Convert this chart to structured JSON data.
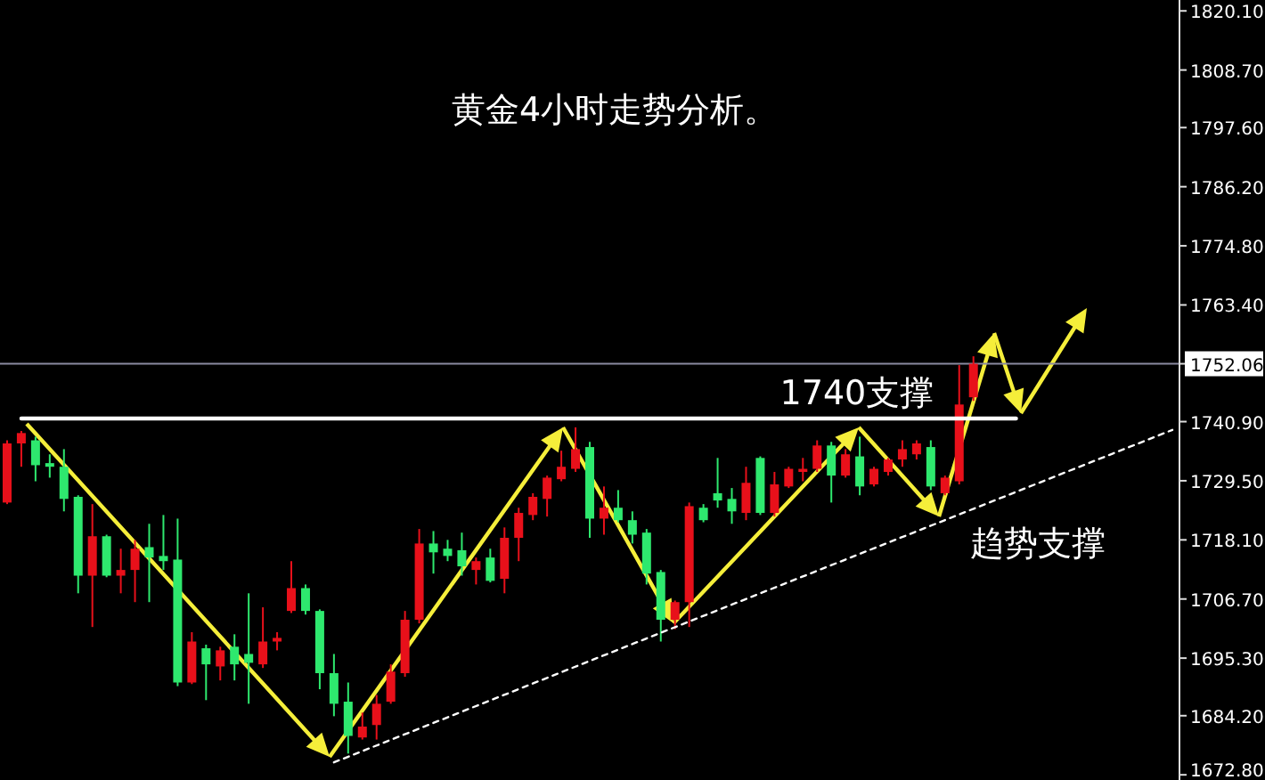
{
  "chart_data": {
    "type": "candlestick",
    "title": "黄金4小时走势分析。",
    "categories": [
      null,
      null,
      null,
      null,
      null,
      null,
      null,
      null,
      null,
      null,
      null,
      null,
      null,
      null,
      null,
      null,
      null,
      null,
      null,
      null,
      null,
      null,
      null,
      null,
      null,
      null,
      null,
      null,
      null,
      null,
      null,
      null,
      null,
      null,
      null,
      null,
      null,
      null,
      null,
      null,
      null,
      null,
      null,
      null,
      null,
      null,
      null,
      null,
      null,
      null,
      null,
      null,
      null,
      null,
      null,
      null,
      null,
      null,
      null,
      null,
      null,
      null,
      null,
      null,
      null,
      null,
      null,
      null,
      null,
      null,
      null,
      null,
      null,
      null,
      null,
      null,
      null,
      null,
      null,
      null,
      null,
      null,
      null
    ],
    "ohlc": [
      [
        1725.3,
        1737.3,
        1725.0,
        1736.7
      ],
      [
        1736.7,
        1739.1,
        1732.2,
        1738.7
      ],
      [
        1737.3,
        1738.0,
        1729.4,
        1732.5
      ],
      [
        1732.9,
        1734.6,
        1730.1,
        1732.2
      ],
      [
        1732.2,
        1735.6,
        1723.6,
        1726.0
      ],
      [
        1726.4,
        1726.7,
        1707.8,
        1711.2
      ],
      [
        1711.2,
        1725.0,
        1701.3,
        1718.8
      ],
      [
        1718.8,
        1719.1,
        1710.9,
        1711.2
      ],
      [
        1711.2,
        1716.4,
        1707.8,
        1712.3
      ],
      [
        1712.3,
        1718.1,
        1706.1,
        1716.4
      ],
      [
        1716.7,
        1721.2,
        1706.1,
        1714.7
      ],
      [
        1715.0,
        1722.9,
        1712.3,
        1714.0
      ],
      [
        1714.3,
        1722.2,
        1689.9,
        1690.6
      ],
      [
        1690.6,
        1700.3,
        1690.3,
        1698.5
      ],
      [
        1697.2,
        1697.9,
        1687.2,
        1694.1
      ],
      [
        1693.7,
        1697.5,
        1691.0,
        1696.8
      ],
      [
        1697.5,
        1699.9,
        1691.0,
        1694.1
      ],
      [
        1696.1,
        1707.8,
        1686.5,
        1694.4
      ],
      [
        1694.1,
        1705.1,
        1693.4,
        1698.5
      ],
      [
        1698.5,
        1700.3,
        1696.8,
        1699.2
      ],
      [
        1704.4,
        1714.0,
        1704.0,
        1708.8
      ],
      [
        1708.8,
        1709.5,
        1703.7,
        1704.4
      ],
      [
        1704.4,
        1704.7,
        1689.3,
        1692.4
      ],
      [
        1692.4,
        1696.1,
        1684.1,
        1686.5
      ],
      [
        1686.9,
        1690.6,
        1676.9,
        1680.3
      ],
      [
        1680.0,
        1684.8,
        1679.6,
        1682.1
      ],
      [
        1682.4,
        1688.2,
        1679.6,
        1686.5
      ],
      [
        1686.9,
        1694.1,
        1686.5,
        1692.7
      ],
      [
        1692.4,
        1704.4,
        1691.7,
        1702.7
      ],
      [
        1702.7,
        1720.2,
        1702.0,
        1717.4
      ],
      [
        1717.4,
        1719.8,
        1711.6,
        1715.7
      ],
      [
        1716.4,
        1718.1,
        1714.0,
        1715.0
      ],
      [
        1716.1,
        1719.5,
        1711.2,
        1713.0
      ],
      [
        1712.3,
        1714.7,
        1709.5,
        1714.0
      ],
      [
        1714.7,
        1716.4,
        1709.9,
        1710.2
      ],
      [
        1710.6,
        1720.5,
        1707.8,
        1718.5
      ],
      [
        1718.5,
        1724.3,
        1714.0,
        1723.3
      ],
      [
        1722.9,
        1727.1,
        1721.9,
        1726.4
      ],
      [
        1726.0,
        1730.5,
        1722.6,
        1730.1
      ],
      [
        1729.8,
        1735.3,
        1729.4,
        1732.2
      ],
      [
        1731.8,
        1739.8,
        1731.2,
        1735.6
      ],
      [
        1736.0,
        1737.0,
        1718.5,
        1722.2
      ],
      [
        1722.2,
        1728.4,
        1719.1,
        1724.3
      ],
      [
        1724.3,
        1727.7,
        1721.5,
        1721.9
      ],
      [
        1721.9,
        1723.6,
        1717.4,
        1719.1
      ],
      [
        1719.5,
        1720.2,
        1709.5,
        1711.6
      ],
      [
        1711.9,
        1712.3,
        1698.5,
        1702.7
      ],
      [
        1702.7,
        1706.4,
        1700.9,
        1706.1
      ],
      [
        1706.1,
        1725.3,
        1701.3,
        1724.6
      ],
      [
        1724.3,
        1725.0,
        1721.5,
        1721.9
      ],
      [
        1727.1,
        1733.9,
        1724.3,
        1725.7
      ],
      [
        1726.0,
        1728.1,
        1721.2,
        1723.6
      ],
      [
        1723.3,
        1732.2,
        1721.9,
        1729.1
      ],
      [
        1733.9,
        1734.2,
        1722.9,
        1723.3
      ],
      [
        1723.3,
        1731.2,
        1722.6,
        1728.8
      ],
      [
        1728.4,
        1732.2,
        1728.1,
        1731.8
      ],
      [
        1731.2,
        1733.9,
        1729.4,
        1731.8
      ],
      [
        1731.8,
        1737.3,
        1731.2,
        1736.3
      ],
      [
        1736.3,
        1737.0,
        1725.3,
        1730.5
      ],
      [
        1730.5,
        1735.6,
        1730.1,
        1734.6
      ],
      [
        1734.2,
        1738.0,
        1726.7,
        1728.4
      ],
      [
        1728.8,
        1732.2,
        1728.4,
        1731.8
      ],
      [
        1731.2,
        1733.9,
        1730.5,
        1733.6
      ],
      [
        1733.6,
        1737.3,
        1732.2,
        1735.6
      ],
      [
        1734.6,
        1737.3,
        1733.6,
        1736.7
      ],
      [
        1736.0,
        1737.3,
        1727.7,
        1728.4
      ],
      [
        1727.1,
        1730.5,
        1726.7,
        1730.1
      ],
      [
        1729.4,
        1751.8,
        1728.8,
        1744.2
      ],
      [
        1745.6,
        1753.5,
        1744.9,
        1752.06
      ],
      null,
      null,
      null,
      null,
      null,
      null,
      null,
      null,
      null,
      null,
      null,
      null,
      null,
      null
    ],
    "colors": [
      "#e8101a",
      "#e8101a",
      "#2ee86e",
      "#2ee86e",
      "#2ee86e",
      "#2ee86e",
      "#e8101a",
      "#2ee86e",
      "#e8101a",
      "#e8101a",
      "#2ee86e",
      "#2ee86e",
      "#2ee86e",
      "#e8101a",
      "#2ee86e",
      "#e8101a",
      "#2ee86e",
      "#2ee86e",
      "#e8101a",
      "#e8101a",
      "#e8101a",
      "#2ee86e",
      "#2ee86e",
      "#2ee86e",
      "#2ee86e",
      "#e8101a",
      "#e8101a",
      "#e8101a",
      "#e8101a",
      "#e8101a",
      "#2ee86e",
      "#2ee86e",
      "#2ee86e",
      "#e8101a",
      "#2ee86e",
      "#e8101a",
      "#e8101a",
      "#e8101a",
      "#e8101a",
      "#e8101a",
      "#e8101a",
      "#2ee86e",
      "#e8101a",
      "#2ee86e",
      "#2ee86e",
      "#2ee86e",
      "#2ee86e",
      "#e8101a",
      "#e8101a",
      "#2ee86e",
      "#2ee86e",
      "#2ee86e",
      "#e8101a",
      "#2ee86e",
      "#e8101a",
      "#e8101a",
      "#e8101a",
      "#e8101a",
      "#2ee86e",
      "#e8101a",
      "#2ee86e",
      "#e8101a",
      "#e8101a",
      "#e8101a",
      "#e8101a",
      "#2ee86e",
      "#e8101a",
      "#e8101a",
      "#e8101a",
      null,
      null,
      null,
      null,
      null,
      null,
      null,
      null,
      null,
      null,
      null,
      null,
      null,
      null
    ],
    "series": [
      {
        "type": "line",
        "name": "1740支撑",
        "color": "#ffffff",
        "line_style": "solid",
        "values": [
          null,
          1741.5,
          null,
          null,
          null,
          null,
          null,
          null,
          null,
          null,
          null,
          null,
          null,
          null,
          null,
          null,
          null,
          null,
          null,
          null,
          null,
          null,
          null,
          null,
          null,
          null,
          null,
          null,
          null,
          null,
          null,
          null,
          null,
          null,
          null,
          null,
          null,
          null,
          null,
          null,
          null,
          null,
          null,
          null,
          null,
          null,
          null,
          null,
          null,
          null,
          null,
          null,
          null,
          null,
          null,
          null,
          null,
          null,
          null,
          null,
          null,
          null,
          null,
          null,
          null,
          null,
          null,
          null,
          null,
          null,
          null,
          1741.5,
          null,
          null,
          null,
          null,
          null,
          null,
          null,
          null,
          null,
          null,
          null
        ]
      },
      {
        "type": "line",
        "name": "趋势支撑",
        "color": "#ffffff",
        "line_style": "dotted",
        "values": [
          null,
          null,
          null,
          null,
          null,
          null,
          null,
          null,
          null,
          null,
          null,
          null,
          null,
          null,
          null,
          null,
          null,
          null,
          null,
          null,
          null,
          null,
          null,
          1675.2,
          null,
          null,
          null,
          null,
          null,
          null,
          null,
          null,
          null,
          null,
          null,
          null,
          null,
          null,
          null,
          null,
          null,
          null,
          null,
          null,
          null,
          null,
          null,
          null,
          null,
          null,
          null,
          null,
          null,
          null,
          null,
          null,
          null,
          null,
          null,
          null,
          null,
          null,
          null,
          null,
          null,
          null,
          null,
          null,
          null,
          null,
          null,
          null,
          null,
          null,
          null,
          null,
          null,
          null,
          null,
          null,
          null,
          null,
          1739.3
        ]
      }
    ],
    "ref_lines": [
      {
        "axis": "y",
        "value": 1752.06,
        "color": "#8a8aa0"
      }
    ],
    "ylim": [
      1671.8,
      1822.2
    ],
    "yticks": [
      {
        "value": 1820.1,
        "label": "1820.10"
      },
      {
        "value": 1808.7,
        "label": "1808.70"
      },
      {
        "value": 1797.6,
        "label": "1797.60"
      },
      {
        "value": 1786.2,
        "label": "1786.20"
      },
      {
        "value": 1774.8,
        "label": "1774.80"
      },
      {
        "value": 1763.4,
        "label": "1763.40"
      },
      {
        "value": 1752.06,
        "label": "1752.06"
      },
      {
        "value": 1740.9,
        "label": "1740.90"
      },
      {
        "value": 1729.5,
        "label": "1729.50"
      },
      {
        "value": 1718.1,
        "label": "1718.10"
      },
      {
        "value": 1706.7,
        "label": "1706.70"
      },
      {
        "value": 1695.3,
        "label": "1695.30"
      },
      {
        "value": 1684.2,
        "label": "1684.20"
      },
      {
        "value": 1672.8,
        "label": "1672.80"
      }
    ],
    "grid": false
  }
}
